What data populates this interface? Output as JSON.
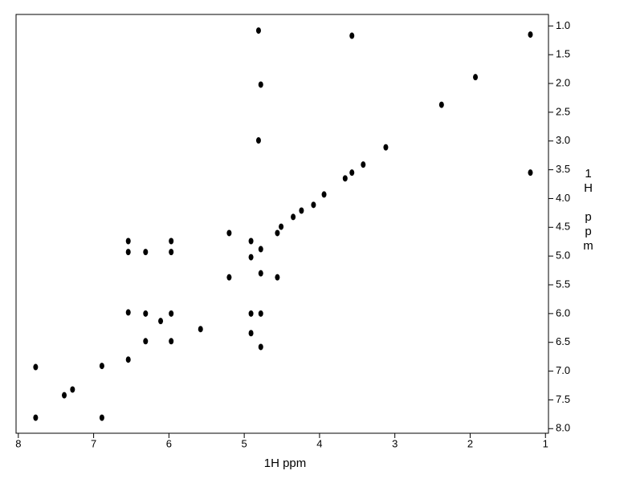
{
  "chart_data": {
    "type": "scatter",
    "x_label": "1H ppm",
    "y_label": "1H ppm",
    "color": "#000000",
    "xlim": [
      8.03,
      0.96
    ],
    "ylim": [
      0.8,
      8.08
    ],
    "xticks": [
      8,
      7,
      6,
      5,
      4,
      3,
      2,
      1
    ],
    "yticks": [
      {
        "value": 1,
        "label": "1.0"
      },
      1.5,
      {
        "value": 2,
        "label": "2.0"
      },
      2.5,
      {
        "value": 3,
        "label": "3.0"
      },
      3.5,
      {
        "value": 4,
        "label": "4.0"
      },
      4.5,
      {
        "value": 5,
        "label": "5.0"
      },
      5.5,
      {
        "value": 6,
        "label": "6.0"
      },
      6.5,
      {
        "value": 7,
        "label": "7.0"
      },
      7.5,
      {
        "value": 8,
        "label": "8.0"
      }
    ],
    "x": [
      7.77,
      7.77,
      6.89,
      6.89,
      6.54,
      6.54,
      6.54,
      6.54,
      6.31,
      6.31,
      6.31,
      5.97,
      5.97,
      5.97,
      5.97,
      5.2,
      5.2,
      4.91,
      4.91,
      4.91,
      4.91,
      4.78,
      4.78,
      4.78,
      4.78,
      4.56,
      4.56,
      4.81,
      4.81,
      4.78,
      3.57,
      3.57,
      3.12,
      2.38,
      1.93,
      1.2,
      1.2,
      3.94,
      4.08,
      4.24,
      4.35,
      4.51,
      3.42,
      3.66,
      5.58,
      6.11,
      7.28,
      7.39
    ],
    "values": [
      6.93,
      7.81,
      6.91,
      7.81,
      6.8,
      5.98,
      4.74,
      4.93,
      6.0,
      6.48,
      4.93,
      6.0,
      6.48,
      4.93,
      4.74,
      4.6,
      5.37,
      4.74,
      5.02,
      6.0,
      6.34,
      4.88,
      5.3,
      6.0,
      6.58,
      4.6,
      5.37,
      1.08,
      2.99,
      2.02,
      1.17,
      3.55,
      3.11,
      2.37,
      1.89,
      1.15,
      3.55,
      3.93,
      4.11,
      4.21,
      4.32,
      4.49,
      3.41,
      3.65,
      6.27,
      6.13,
      7.32,
      7.42
    ]
  }
}
